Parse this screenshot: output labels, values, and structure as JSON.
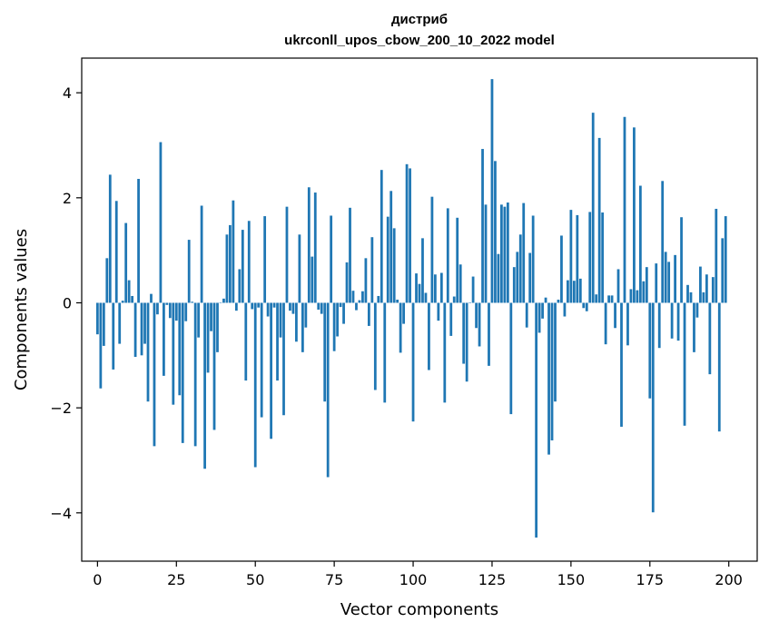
{
  "chart_data": {
    "type": "bar",
    "title_line1": "дистриб",
    "title_line2": "ukrconll_upos_cbow_200_10_2022 model",
    "xlabel": "Vector components",
    "ylabel": "Components values",
    "xlim": [
      -5,
      209
    ],
    "ylim": [
      -4.92,
      4.66
    ],
    "xticks": [
      0,
      25,
      50,
      75,
      100,
      125,
      150,
      175,
      200
    ],
    "xtick_labels": [
      "0",
      "25",
      "50",
      "75",
      "100",
      "125",
      "150",
      "175",
      "200"
    ],
    "yticks": [
      -4,
      -2,
      0,
      2,
      4
    ],
    "ytick_labels": [
      "−4",
      "−2",
      "0",
      "2",
      "4"
    ],
    "bar_color": "#1f77b4",
    "grid": false,
    "x": [
      0,
      1,
      2,
      3,
      4,
      5,
      6,
      7,
      8,
      9,
      10,
      11,
      12,
      13,
      14,
      15,
      16,
      17,
      18,
      19,
      20,
      21,
      22,
      23,
      24,
      25,
      26,
      27,
      28,
      29,
      30,
      31,
      32,
      33,
      34,
      35,
      36,
      37,
      38,
      39,
      40,
      41,
      42,
      43,
      44,
      45,
      46,
      47,
      48,
      49,
      50,
      51,
      52,
      53,
      54,
      55,
      56,
      57,
      58,
      59,
      60,
      61,
      62,
      63,
      64,
      65,
      66,
      67,
      68,
      69,
      70,
      71,
      72,
      73,
      74,
      75,
      76,
      77,
      78,
      79,
      80,
      81,
      82,
      83,
      84,
      85,
      86,
      87,
      88,
      89,
      90,
      91,
      92,
      93,
      94,
      95,
      96,
      97,
      98,
      99,
      100,
      101,
      102,
      103,
      104,
      105,
      106,
      107,
      108,
      109,
      110,
      111,
      112,
      113,
      114,
      115,
      116,
      117,
      118,
      119,
      120,
      121,
      122,
      123,
      124,
      125,
      126,
      127,
      128,
      129,
      130,
      131,
      132,
      133,
      134,
      135,
      136,
      137,
      138,
      139,
      140,
      141,
      142,
      143,
      144,
      145,
      146,
      147,
      148,
      149,
      150,
      151,
      152,
      153,
      154,
      155,
      156,
      157,
      158,
      159,
      160,
      161,
      162,
      163,
      164,
      165,
      166,
      167,
      168,
      169,
      170,
      171,
      172,
      173,
      174,
      175,
      176,
      177,
      178,
      179,
      180,
      181,
      182,
      183,
      184,
      185,
      186,
      187,
      188,
      189,
      190,
      191,
      192,
      193,
      194,
      195,
      196,
      197,
      198,
      199
    ],
    "values": [
      -0.6,
      -1.63,
      -0.82,
      0.85,
      2.44,
      -1.27,
      1.94,
      -0.78,
      0.04,
      1.52,
      0.43,
      0.13,
      -1.03,
      2.36,
      -1.0,
      -0.78,
      -1.88,
      0.17,
      -2.73,
      -0.22,
      3.06,
      -1.39,
      -0.04,
      -0.29,
      -1.94,
      -0.34,
      -1.76,
      -2.67,
      -0.35,
      1.2,
      0.02,
      -2.73,
      -0.66,
      1.85,
      -3.16,
      -1.33,
      -0.54,
      -2.42,
      -0.94,
      0.0,
      0.08,
      1.3,
      1.48,
      1.95,
      -0.15,
      0.64,
      1.39,
      -1.48,
      1.56,
      -0.12,
      -3.13,
      -0.09,
      -2.18,
      1.65,
      -0.26,
      -2.59,
      -0.09,
      -1.48,
      -0.66,
      -2.14,
      1.83,
      -0.15,
      -0.21,
      -0.74,
      1.3,
      -0.94,
      -0.47,
      2.2,
      0.88,
      2.1,
      -0.13,
      -0.21,
      -1.88,
      -3.32,
      1.66,
      -0.92,
      -0.64,
      -0.08,
      -0.4,
      0.77,
      1.81,
      0.23,
      -0.14,
      0.05,
      0.22,
      0.85,
      -0.44,
      1.25,
      -1.66,
      0.13,
      2.53,
      -1.9,
      1.64,
      2.13,
      1.42,
      0.06,
      -0.95,
      -0.4,
      2.64,
      2.56,
      -2.26,
      0.56,
      0.36,
      1.23,
      0.19,
      -1.28,
      2.02,
      0.54,
      -0.34,
      0.57,
      -1.9,
      1.8,
      -0.63,
      0.12,
      1.62,
      0.73,
      -1.16,
      -1.5,
      0.0,
      0.5,
      -0.48,
      -0.83,
      2.93,
      1.87,
      -1.2,
      4.26,
      2.7,
      0.93,
      1.87,
      1.83,
      1.91,
      -2.12,
      0.68,
      0.97,
      1.3,
      1.9,
      -0.47,
      0.95,
      1.66,
      -4.47,
      -0.57,
      -0.3,
      0.1,
      -2.89,
      -2.62,
      -1.88,
      0.06,
      1.28,
      -0.26,
      0.43,
      1.77,
      0.42,
      1.67,
      0.46,
      -0.1,
      -0.16,
      1.73,
      3.62,
      0.16,
      3.14,
      1.72,
      -0.79,
      0.14,
      0.14,
      -0.48,
      0.64,
      -2.36,
      3.54,
      -0.81,
      0.26,
      3.34,
      0.24,
      2.23,
      0.41,
      0.68,
      -1.82,
      -3.99,
      0.75,
      -0.86,
      2.32,
      0.97,
      0.78,
      -0.68,
      0.91,
      -0.72,
      1.63,
      -2.34,
      0.34,
      0.2,
      -0.94,
      -0.28,
      0.69,
      0.2,
      0.54,
      -1.36,
      0.49,
      1.79,
      -2.45,
      1.23,
      1.65
    ]
  }
}
